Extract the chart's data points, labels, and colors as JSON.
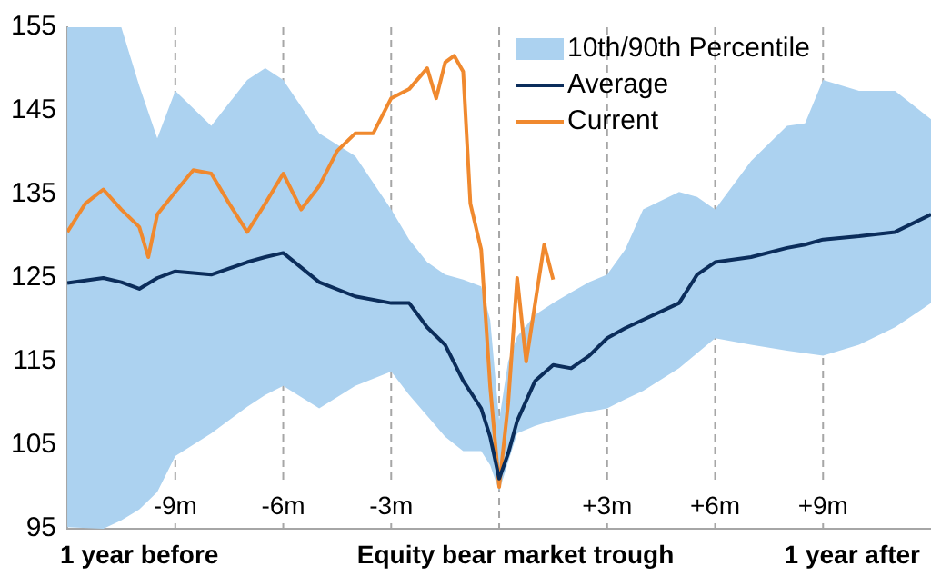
{
  "chart_data": {
    "type": "line",
    "xlim": [
      -12,
      12
    ],
    "xticks": [
      {
        "value": -9,
        "label": "-9m"
      },
      {
        "value": -6,
        "label": "-6m"
      },
      {
        "value": -3,
        "label": "-3m"
      },
      {
        "value": 0,
        "label": null
      },
      {
        "value": 3,
        "label": "+3m"
      },
      {
        "value": 6,
        "label": "+6m"
      },
      {
        "value": 9,
        "label": "+9m"
      }
    ],
    "annotations": [
      "1 year before",
      "Equity bear market trough",
      "1 year after",
      "10th/90th Percentile"
    ],
    "ylim": [
      95,
      155
    ],
    "yticks": [
      95,
      105,
      115,
      125,
      135,
      145,
      155
    ],
    "grid": "x",
    "legend": "top",
    "marker": "none",
    "line_style": "solid",
    "series": [
      {
        "name": "Average",
        "color": "#0b2d5b",
        "x": [
          -12,
          -11,
          -10.5,
          -10,
          -9.5,
          -9,
          -8,
          -7,
          -6.5,
          -6,
          -5,
          -4,
          -3,
          -2.5,
          -2,
          -1.5,
          -1,
          -0.5,
          -0.25,
          0,
          0.25,
          0.5,
          1,
          1.5,
          2,
          2.5,
          3,
          3.5,
          4,
          5,
          5.5,
          6,
          7,
          8,
          8.5,
          9,
          10,
          11,
          12
        ],
        "values": [
          124.4,
          125,
          124.5,
          123.7,
          125,
          125.8,
          125.4,
          126.9,
          127.5,
          128,
          124.5,
          122.8,
          122,
          122,
          119.1,
          117,
          112.7,
          109.4,
          106,
          101,
          104,
          107.9,
          112.7,
          114.6,
          114.2,
          115.7,
          117.8,
          119,
          120,
          122,
          125.4,
          126.9,
          127.5,
          128.6,
          129,
          129.6,
          130,
          130.5,
          132.6
        ],
        "upper": [
          155,
          155,
          155,
          148,
          141.7,
          147.4,
          143.2,
          148.7,
          150.1,
          148.7,
          142.3,
          139.6,
          133.2,
          129.6,
          126.9,
          125.4,
          124.8,
          124,
          120,
          108,
          115,
          118,
          120.6,
          122,
          123.3,
          124.5,
          125.4,
          128.4,
          133.2,
          135.3,
          134.7,
          133.2,
          139,
          143.2,
          143.5,
          148.7,
          147.4,
          147.4,
          144
        ],
        "lower": [
          95.2,
          95,
          96,
          97.3,
          99.4,
          103.7,
          106.4,
          109.6,
          111,
          112.1,
          109.4,
          112.1,
          113.8,
          111,
          108.5,
          106,
          104.3,
          104.3,
          102.6,
          99.5,
          103,
          106.4,
          107.3,
          108,
          108.5,
          109,
          109.4,
          110.5,
          111.5,
          114.2,
          116,
          117.8,
          117,
          116.3,
          116,
          115.7,
          117,
          119.1,
          122
        ]
      },
      {
        "name": "Current",
        "color": "#f0892e",
        "x": [
          -12,
          -11.5,
          -11,
          -10.5,
          -10,
          -9.75,
          -9.5,
          -9,
          -8.5,
          -8,
          -7.5,
          -7,
          -6.5,
          -6,
          -5.5,
          -5,
          -4.5,
          -4,
          -3.5,
          -3,
          -2.5,
          -2,
          -1.75,
          -1.5,
          -1.25,
          -1,
          -0.8,
          -0.5,
          -0.25,
          0,
          0.25,
          0.5,
          0.75,
          1,
          1.25,
          1.5
        ],
        "values": [
          130.5,
          133.9,
          135.6,
          133.2,
          131.1,
          127.5,
          132.6,
          135.3,
          137.9,
          137.5,
          133.9,
          130.5,
          133.9,
          137.5,
          133.2,
          136,
          140.2,
          142.3,
          142.3,
          146.5,
          147.6,
          150.1,
          146.5,
          150.8,
          151.6,
          149.7,
          133.9,
          128.4,
          112,
          100,
          110,
          125,
          115,
          122,
          129,
          124.8
        ]
      }
    ]
  }
}
